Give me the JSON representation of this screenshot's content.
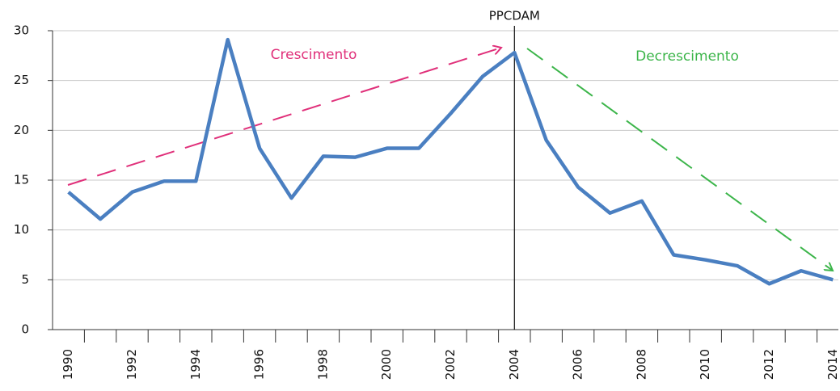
{
  "chart_data": {
    "type": "line",
    "categories": [
      "1990",
      null,
      "1992",
      null,
      "1994",
      null,
      "1996",
      null,
      "1998",
      null,
      "2000",
      null,
      "2002",
      null,
      "2004",
      null,
      "2006",
      null,
      "2008",
      null,
      "2010",
      null,
      "2012",
      null,
      "2014"
    ],
    "values": [
      13.8,
      11.1,
      13.8,
      14.9,
      14.9,
      29.1,
      18.2,
      13.2,
      17.4,
      17.3,
      18.2,
      18.2,
      21.7,
      25.4,
      27.8,
      19.0,
      14.3,
      11.7,
      12.9,
      7.5,
      7.0,
      6.4,
      4.6,
      5.9,
      5.0
    ],
    "color": "#4a7fc1",
    "ylim": [
      0,
      30
    ],
    "yticks": [
      0,
      5,
      10,
      15,
      20,
      25,
      30
    ],
    "grid": true,
    "annotations": {
      "marker": "PPCDAM",
      "rise": "Crescimento",
      "fall": "Decrescimento"
    }
  }
}
